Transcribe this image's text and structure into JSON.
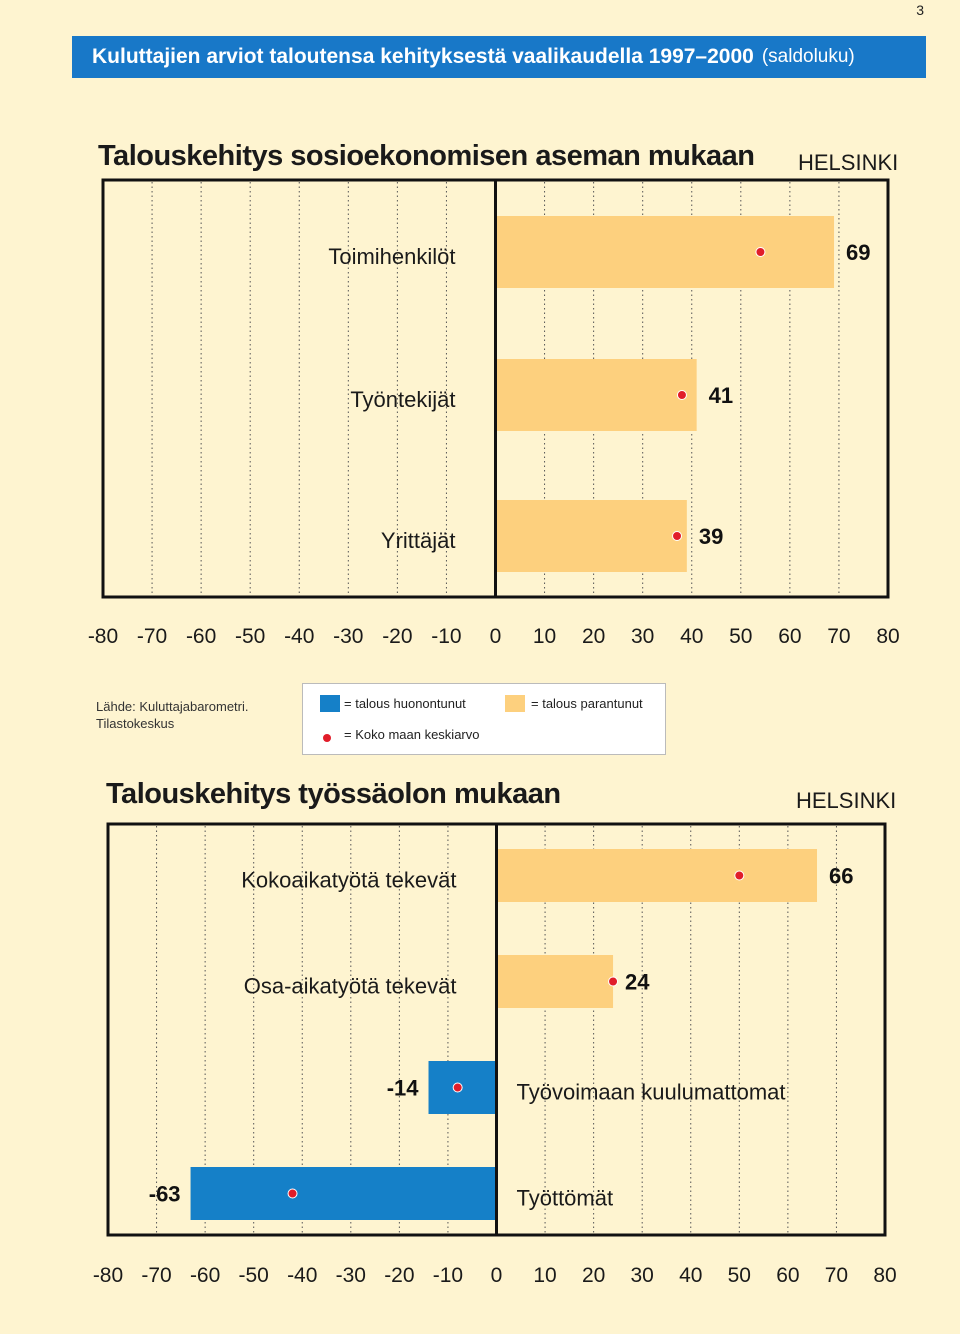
{
  "page_number": "3",
  "banner": {
    "title": "Kuluttajien arviot taloutensa kehityksestä vaalikaudella 1997–2000",
    "subtitle": "(saldoluku)"
  },
  "colors": {
    "positive_bar": "#fdd07e",
    "negative_bar": "#1580c8",
    "average_dot": "#e11d2a",
    "banner": "#1878c8",
    "background": "#fef4d0"
  },
  "source": {
    "line1": "Lähde: Kuluttajabarometri.",
    "line2": "Tilastokeskus"
  },
  "legend": {
    "negative": "= talous huonontunut",
    "positive": "= talous parantunut",
    "average": "= Koko maan keskiarvo"
  },
  "chart_data": [
    {
      "type": "bar",
      "orientation": "horizontal",
      "title": "Talouskehitys sosioekonomisen aseman mukaan",
      "region": "HELSINKI",
      "xlim": [
        -80,
        80
      ],
      "xticks": [
        "-80",
        "-70",
        "-60",
        "-50",
        "-40",
        "-30",
        "-20",
        "-10",
        "0",
        "10",
        "20",
        "30",
        "40",
        "50",
        "60",
        "70",
        "80"
      ],
      "grid": true,
      "categories": [
        "Toimihenkilöt",
        "Työntekijät",
        "Yrittäjät"
      ],
      "values": [
        69,
        41,
        39
      ],
      "average": [
        54,
        38,
        37
      ]
    },
    {
      "type": "bar",
      "orientation": "horizontal",
      "title": "Talouskehitys työssäolon mukaan",
      "region": "HELSINKI",
      "xlim": [
        -80,
        80
      ],
      "xticks": [
        "-80",
        "-70",
        "-60",
        "-50",
        "-40",
        "-30",
        "-20",
        "-10",
        "0",
        "10",
        "20",
        "30",
        "40",
        "50",
        "60",
        "70",
        "80"
      ],
      "grid": true,
      "categories": [
        "Kokoaikatyötä tekevät",
        "Osa-aikatyötä tekevät",
        "Työvoimaan kuulumattomat",
        "Työttömät"
      ],
      "values": [
        66,
        24,
        -14,
        -63
      ],
      "average": [
        50,
        24,
        -8,
        -42
      ]
    }
  ]
}
